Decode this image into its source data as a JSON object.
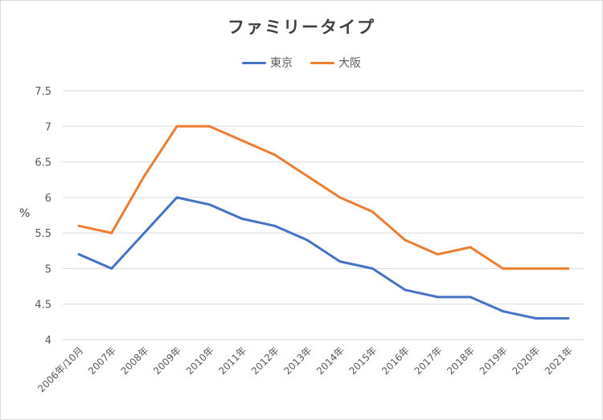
{
  "chart_data": {
    "type": "line",
    "title": "ファミリータイプ",
    "ylabel": "%",
    "xlabel": "",
    "ylim": [
      4,
      7.5
    ],
    "yticks": [
      "4",
      "4.5",
      "5",
      "5.5",
      "6",
      "6.5",
      "7",
      "7.5"
    ],
    "categories": [
      "2006年/10月",
      "2007年",
      "2008年",
      "2009年",
      "2010年",
      "2011年",
      "2012年",
      "2013年",
      "2014年",
      "2015年",
      "2016年",
      "2017年",
      "2018年",
      "2019年",
      "2020年",
      "2021年"
    ],
    "series": [
      {
        "name": "東京",
        "color": "#4472c4",
        "values": [
          5.2,
          5.0,
          5.5,
          6.0,
          5.9,
          5.7,
          5.6,
          5.4,
          5.1,
          5.0,
          4.7,
          4.6,
          4.6,
          4.4,
          4.3,
          4.3
        ]
      },
      {
        "name": "大阪",
        "color": "#ed7d31",
        "values": [
          5.6,
          5.5,
          6.3,
          7.0,
          7.0,
          6.8,
          6.6,
          6.3,
          6.0,
          5.8,
          5.4,
          5.2,
          5.3,
          5.0,
          5.0,
          5.0
        ]
      }
    ],
    "grid": true,
    "legend": "top"
  }
}
